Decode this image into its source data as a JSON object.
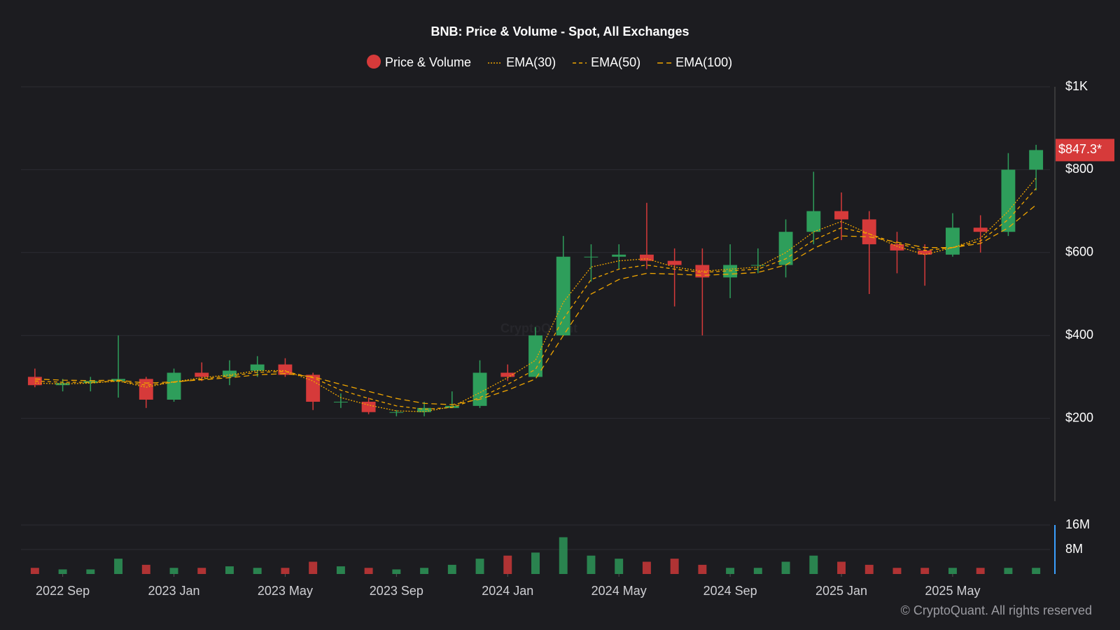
{
  "chart_data": {
    "type": "candlestick",
    "title": "BNB: Price & Volume - Spot, All Exchanges",
    "watermark": "CryptoQuant",
    "footer": "© CryptoQuant. All rights reserved",
    "x": [
      "2022-08",
      "2022-09",
      "2022-10",
      "2022-11",
      "2022-12",
      "2023-01",
      "2023-02",
      "2023-03",
      "2023-04",
      "2023-05",
      "2023-06",
      "2023-07",
      "2023-08",
      "2023-09",
      "2023-10",
      "2023-11",
      "2023-12",
      "2024-01",
      "2024-02",
      "2024-03",
      "2024-04",
      "2024-05",
      "2024-06",
      "2024-07",
      "2024-08",
      "2024-09",
      "2024-10",
      "2024-11",
      "2024-12",
      "2025-01",
      "2025-02",
      "2025-03",
      "2025-04",
      "2025-05",
      "2025-06",
      "2025-07",
      "2025-08"
    ],
    "series": [
      {
        "name": "Price & Volume",
        "color": "#d63a3a",
        "up_color": "#2e9e5b",
        "down_color": "#d63a3a",
        "open": [
          300,
          280,
          285,
          290,
          295,
          245,
          310,
          300,
          315,
          330,
          305,
          240,
          240,
          215,
          215,
          225,
          230,
          310,
          300,
          400,
          590,
          590,
          595,
          580,
          570,
          540,
          570,
          570,
          650,
          700,
          680,
          620,
          605,
          595,
          660,
          650,
          800
        ],
        "high": [
          320,
          295,
          300,
          400,
          300,
          320,
          335,
          340,
          350,
          345,
          310,
          260,
          250,
          220,
          240,
          265,
          340,
          330,
          420,
          640,
          620,
          620,
          720,
          610,
          610,
          620,
          610,
          680,
          795,
          745,
          700,
          650,
          620,
          695,
          690,
          840,
          860
        ],
        "low": [
          275,
          265,
          265,
          250,
          225,
          240,
          290,
          280,
          300,
          300,
          220,
          225,
          210,
          205,
          205,
          225,
          225,
          290,
          300,
          400,
          530,
          560,
          560,
          470,
          400,
          490,
          550,
          540,
          620,
          630,
          500,
          550,
          520,
          590,
          600,
          640,
          750
        ],
        "close": [
          280,
          285,
          290,
          295,
          245,
          310,
          300,
          315,
          330,
          305,
          240,
          240,
          215,
          215,
          225,
          230,
          310,
          300,
          400,
          590,
          590,
          595,
          580,
          570,
          540,
          570,
          570,
          650,
          700,
          680,
          620,
          605,
          595,
          660,
          650,
          800,
          847.3
        ]
      },
      {
        "name": "EMA(30)",
        "color": "#f0a500",
        "dash": "2 2",
        "values": [
          285,
          283,
          285,
          290,
          275,
          288,
          298,
          305,
          315,
          315,
          290,
          250,
          232,
          218,
          216,
          228,
          262,
          298,
          340,
          480,
          565,
          580,
          585,
          565,
          555,
          560,
          565,
          600,
          650,
          675,
          645,
          615,
          595,
          612,
          635,
          700,
          780
        ]
      },
      {
        "name": "EMA(50)",
        "color": "#f0a500",
        "dash": "5 4",
        "values": [
          290,
          287,
          287,
          290,
          280,
          287,
          295,
          302,
          311,
          313,
          298,
          268,
          248,
          230,
          222,
          226,
          250,
          282,
          318,
          440,
          535,
          560,
          570,
          560,
          552,
          556,
          560,
          585,
          630,
          660,
          645,
          622,
          605,
          612,
          628,
          680,
          755
        ]
      },
      {
        "name": "EMA(100)",
        "color": "#f0a500",
        "dash": "8 5",
        "values": [
          295,
          292,
          291,
          292,
          285,
          288,
          293,
          298,
          305,
          308,
          300,
          282,
          265,
          248,
          236,
          233,
          246,
          268,
          295,
          400,
          500,
          535,
          550,
          548,
          545,
          548,
          552,
          570,
          610,
          640,
          638,
          625,
          612,
          612,
          622,
          660,
          715
        ]
      }
    ],
    "volume": {
      "values": [
        2000000,
        1500000,
        1500000,
        5000000,
        3000000,
        2000000,
        2000000,
        2500000,
        2000000,
        2000000,
        4000000,
        2500000,
        2000000,
        1500000,
        2000000,
        3000000,
        5000000,
        6000000,
        7000000,
        12000000,
        6000000,
        5000000,
        4000000,
        5000000,
        3000000,
        2000000,
        2000000,
        4000000,
        6000000,
        4000000,
        3000000,
        2000000,
        2000000,
        2000000,
        2000000,
        2000000,
        2000000
      ],
      "ylim": [
        0,
        16000000
      ],
      "yticks": [
        {
          "value": 8000000,
          "label": "8M"
        },
        {
          "value": 16000000,
          "label": "16M"
        }
      ]
    },
    "ylim": [
      0,
      1000
    ],
    "yticks": [
      {
        "value": 200,
        "label": "$200"
      },
      {
        "value": 400,
        "label": "$400"
      },
      {
        "value": 600,
        "label": "$600"
      },
      {
        "value": 800,
        "label": "$800"
      },
      {
        "value": 1000,
        "label": "$1K"
      }
    ],
    "xticks": [
      {
        "value": "2022-09",
        "label": "2022 Sep"
      },
      {
        "value": "2023-01",
        "label": "2023 Jan"
      },
      {
        "value": "2023-05",
        "label": "2023 May"
      },
      {
        "value": "2023-09",
        "label": "2023 Sep"
      },
      {
        "value": "2024-01",
        "label": "2024 Jan"
      },
      {
        "value": "2024-05",
        "label": "2024 May"
      },
      {
        "value": "2024-09",
        "label": "2024 Sep"
      },
      {
        "value": "2025-01",
        "label": "2025 Jan"
      },
      {
        "value": "2025-05",
        "label": "2025 May"
      }
    ],
    "last_price": {
      "value": 847.3,
      "label": "$847.3*"
    },
    "grid": true
  }
}
